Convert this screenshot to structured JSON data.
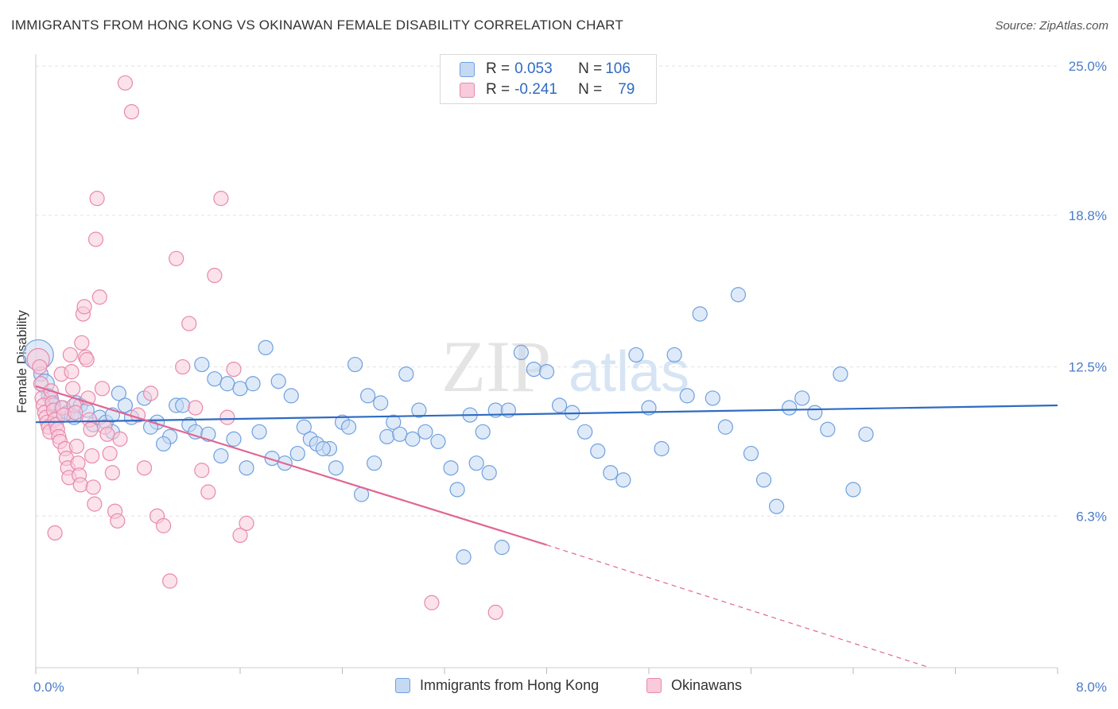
{
  "header": {
    "title": "IMMIGRANTS FROM HONG KONG VS OKINAWAN FEMALE DISABILITY CORRELATION CHART",
    "source": "Source: ZipAtlas.com"
  },
  "watermark": {
    "part1": "ZIP",
    "part2": "atlas"
  },
  "legend": {
    "series": [
      {
        "r_label": "R = ",
        "r_value": "0.053",
        "n_label": "N = ",
        "n_value": "106",
        "color": "#6fa0e0",
        "fill": "#c5d9f3"
      },
      {
        "r_label": "R = ",
        "r_value": "-0.241",
        "n_label": "N = ",
        "n_value": "79",
        "color": "#e889ab",
        "fill": "#f8cadb"
      }
    ]
  },
  "bottom_legend": {
    "items": [
      {
        "label": "Immigrants from Hong Kong",
        "color": "#6fa0e0",
        "fill": "#c5d9f3"
      },
      {
        "label": "Okinawans",
        "color": "#e889ab",
        "fill": "#f8cadb"
      }
    ]
  },
  "chart_data": {
    "type": "scatter",
    "title": "IMMIGRANTS FROM HONG KONG VS OKINAWAN FEMALE DISABILITY CORRELATION CHART",
    "xlabel": "",
    "ylabel": "Female Disability",
    "xlim": [
      0,
      8
    ],
    "ylim": [
      0,
      25.5
    ],
    "x_tick_labels": [
      "0.0%",
      "8.0%"
    ],
    "y_tick_labels": [
      "25.0%",
      "18.8%",
      "12.5%",
      "6.3%"
    ],
    "y_tick_values": [
      25.0,
      18.8,
      12.5,
      6.3
    ],
    "grid": true,
    "series": [
      {
        "name": "Immigrants from Hong Kong",
        "color": "#6fa0e0",
        "fill": "#c5d9f3",
        "trend": {
          "x0": 0.0,
          "y0": 10.2,
          "x1": 8.0,
          "y1": 10.9,
          "style": "solid",
          "color": "#2f6bc2"
        },
        "points": [
          [
            0.02,
            13.0
          ],
          [
            0.04,
            12.2
          ],
          [
            0.07,
            11.8
          ],
          [
            0.1,
            11.3
          ],
          [
            0.12,
            11.2
          ],
          [
            0.14,
            10.9
          ],
          [
            0.17,
            10.4
          ],
          [
            0.2,
            10.8
          ],
          [
            0.25,
            10.6
          ],
          [
            0.28,
            10.5
          ],
          [
            0.32,
            11.0
          ],
          [
            0.35,
            10.9
          ],
          [
            0.4,
            10.7
          ],
          [
            0.45,
            10.1
          ],
          [
            0.5,
            10.4
          ],
          [
            0.55,
            10.2
          ],
          [
            0.6,
            9.8
          ],
          [
            0.65,
            11.4
          ],
          [
            0.7,
            10.9
          ],
          [
            0.75,
            10.4
          ],
          [
            0.85,
            11.2
          ],
          [
            0.95,
            10.2
          ],
          [
            1.05,
            9.6
          ],
          [
            1.1,
            10.9
          ],
          [
            1.2,
            10.1
          ],
          [
            1.3,
            12.6
          ],
          [
            1.4,
            12.0
          ],
          [
            1.5,
            11.8
          ],
          [
            1.6,
            11.6
          ],
          [
            1.7,
            11.8
          ],
          [
            1.8,
            13.3
          ],
          [
            1.9,
            11.9
          ],
          [
            2.0,
            11.3
          ],
          [
            2.1,
            10.0
          ],
          [
            2.15,
            9.5
          ],
          [
            2.2,
            9.3
          ],
          [
            2.3,
            9.1
          ],
          [
            2.4,
            10.2
          ],
          [
            2.5,
            12.6
          ],
          [
            2.6,
            11.3
          ],
          [
            2.7,
            11.0
          ],
          [
            2.8,
            10.2
          ],
          [
            2.9,
            12.2
          ],
          [
            3.0,
            10.7
          ],
          [
            3.05,
            9.8
          ],
          [
            3.15,
            9.4
          ],
          [
            3.25,
            8.3
          ],
          [
            3.3,
            7.4
          ],
          [
            3.4,
            10.5
          ],
          [
            3.5,
            9.8
          ],
          [
            3.6,
            10.7
          ],
          [
            3.7,
            10.7
          ],
          [
            3.8,
            13.1
          ],
          [
            3.9,
            12.4
          ],
          [
            4.0,
            12.3
          ],
          [
            4.1,
            10.9
          ],
          [
            4.2,
            10.6
          ],
          [
            4.3,
            9.8
          ],
          [
            4.4,
            9.0
          ],
          [
            4.5,
            8.1
          ],
          [
            4.6,
            7.8
          ],
          [
            4.7,
            13.0
          ],
          [
            4.8,
            10.8
          ],
          [
            4.9,
            9.1
          ],
          [
            5.0,
            13.0
          ],
          [
            5.1,
            11.3
          ],
          [
            5.2,
            14.7
          ],
          [
            5.3,
            11.2
          ],
          [
            5.4,
            10.0
          ],
          [
            5.5,
            15.5
          ],
          [
            5.6,
            8.9
          ],
          [
            5.7,
            7.8
          ],
          [
            5.8,
            6.7
          ],
          [
            5.9,
            10.8
          ],
          [
            6.0,
            11.2
          ],
          [
            6.1,
            10.6
          ],
          [
            6.2,
            9.9
          ],
          [
            6.3,
            12.2
          ],
          [
            6.4,
            7.4
          ],
          [
            6.5,
            9.7
          ],
          [
            0.3,
            10.4
          ],
          [
            0.6,
            10.5
          ],
          [
            0.9,
            10.0
          ],
          [
            1.0,
            9.3
          ],
          [
            1.15,
            10.9
          ],
          [
            1.25,
            9.8
          ],
          [
            1.35,
            9.7
          ],
          [
            1.45,
            8.8
          ],
          [
            1.55,
            9.5
          ],
          [
            1.65,
            8.3
          ],
          [
            1.75,
            9.8
          ],
          [
            1.85,
            8.7
          ],
          [
            1.95,
            8.5
          ],
          [
            2.05,
            8.9
          ],
          [
            2.25,
            9.1
          ],
          [
            2.35,
            8.3
          ],
          [
            2.45,
            10.0
          ],
          [
            2.55,
            7.2
          ],
          [
            2.65,
            8.5
          ],
          [
            2.75,
            9.6
          ],
          [
            2.85,
            9.7
          ],
          [
            2.95,
            9.5
          ],
          [
            3.35,
            4.6
          ],
          [
            3.45,
            8.5
          ],
          [
            3.55,
            8.1
          ],
          [
            3.65,
            5.0
          ]
        ]
      },
      {
        "name": "Okinawans",
        "color": "#e889ab",
        "fill": "#f8cadb",
        "trend": {
          "x0": 0.0,
          "y0": 11.7,
          "x1": 4.0,
          "y1": 5.1,
          "x2": 7.0,
          "y2": 0.0,
          "style": "solid-then-dashed",
          "color": "#e06694"
        },
        "points": [
          [
            0.02,
            12.8
          ],
          [
            0.03,
            12.5
          ],
          [
            0.04,
            11.8
          ],
          [
            0.05,
            11.2
          ],
          [
            0.06,
            10.9
          ],
          [
            0.07,
            10.6
          ],
          [
            0.08,
            10.4
          ],
          [
            0.09,
            10.2
          ],
          [
            0.1,
            10.0
          ],
          [
            0.11,
            9.8
          ],
          [
            0.12,
            11.5
          ],
          [
            0.13,
            11.0
          ],
          [
            0.14,
            10.7
          ],
          [
            0.15,
            10.3
          ],
          [
            0.16,
            10.1
          ],
          [
            0.17,
            9.9
          ],
          [
            0.18,
            9.6
          ],
          [
            0.19,
            9.4
          ],
          [
            0.2,
            12.2
          ],
          [
            0.21,
            10.8
          ],
          [
            0.22,
            10.5
          ],
          [
            0.23,
            9.1
          ],
          [
            0.24,
            8.7
          ],
          [
            0.25,
            8.3
          ],
          [
            0.26,
            7.9
          ],
          [
            0.27,
            13.0
          ],
          [
            0.28,
            12.3
          ],
          [
            0.29,
            11.6
          ],
          [
            0.3,
            10.9
          ],
          [
            0.31,
            10.6
          ],
          [
            0.32,
            9.2
          ],
          [
            0.33,
            8.5
          ],
          [
            0.34,
            8.0
          ],
          [
            0.35,
            7.6
          ],
          [
            0.36,
            13.5
          ],
          [
            0.37,
            14.7
          ],
          [
            0.38,
            15.0
          ],
          [
            0.39,
            12.9
          ],
          [
            0.4,
            12.8
          ],
          [
            0.41,
            11.2
          ],
          [
            0.42,
            10.3
          ],
          [
            0.43,
            9.9
          ],
          [
            0.44,
            8.8
          ],
          [
            0.45,
            7.5
          ],
          [
            0.46,
            6.8
          ],
          [
            0.47,
            17.8
          ],
          [
            0.48,
            19.5
          ],
          [
            0.5,
            15.4
          ],
          [
            0.52,
            11.6
          ],
          [
            0.54,
            10.0
          ],
          [
            0.56,
            9.7
          ],
          [
            0.58,
            8.9
          ],
          [
            0.6,
            8.1
          ],
          [
            0.62,
            6.5
          ],
          [
            0.64,
            6.1
          ],
          [
            0.66,
            9.5
          ],
          [
            0.7,
            24.3
          ],
          [
            0.75,
            23.1
          ],
          [
            0.8,
            10.5
          ],
          [
            0.85,
            8.3
          ],
          [
            0.9,
            11.4
          ],
          [
            0.95,
            6.3
          ],
          [
            1.0,
            5.9
          ],
          [
            1.05,
            3.6
          ],
          [
            1.1,
            17.0
          ],
          [
            1.15,
            12.5
          ],
          [
            1.2,
            14.3
          ],
          [
            1.25,
            10.8
          ],
          [
            1.3,
            8.2
          ],
          [
            1.35,
            7.3
          ],
          [
            1.4,
            16.3
          ],
          [
            1.45,
            19.5
          ],
          [
            1.5,
            10.4
          ],
          [
            1.55,
            12.4
          ],
          [
            1.6,
            5.5
          ],
          [
            1.65,
            6.0
          ],
          [
            3.1,
            2.7
          ],
          [
            3.6,
            2.3
          ],
          [
            0.15,
            5.6
          ]
        ]
      }
    ]
  }
}
